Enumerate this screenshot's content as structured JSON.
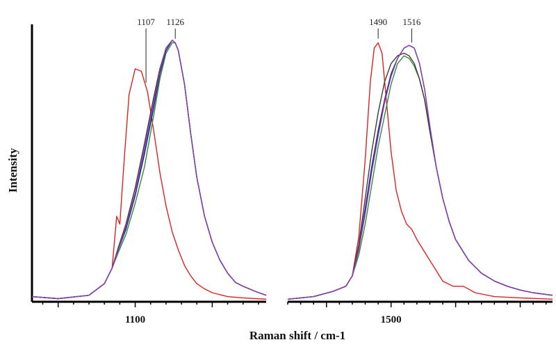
{
  "chart_data": [
    {
      "type": "line",
      "panel": "left",
      "xlabel": "Raman shift / cm-1",
      "ylabel": "Intensity",
      "xlim": [
        1033,
        1185
      ],
      "ylim": [
        0,
        1.05
      ],
      "x_ticks": [
        1100
      ],
      "peak_labels": [
        {
          "text": "1107",
          "x": 1107
        },
        {
          "text": "1126",
          "x": 1126
        }
      ],
      "grid": false,
      "series": [
        {
          "color": "#e02020",
          "x": [
            1033,
            1050,
            1070,
            1080,
            1085,
            1088,
            1090,
            1093,
            1096,
            1100,
            1104,
            1108,
            1112,
            1116,
            1120,
            1124,
            1128,
            1132,
            1136,
            1140,
            1145,
            1150,
            1160,
            1170,
            1185
          ],
          "values": [
            0.02,
            0.012,
            0.025,
            0.07,
            0.13,
            0.33,
            0.3,
            0.56,
            0.8,
            0.9,
            0.89,
            0.81,
            0.66,
            0.5,
            0.37,
            0.27,
            0.2,
            0.14,
            0.1,
            0.07,
            0.05,
            0.035,
            0.02,
            0.015,
            0.01
          ]
        },
        {
          "color": "#1a1a80",
          "x": [
            1033,
            1050,
            1070,
            1080,
            1085,
            1089,
            1094,
            1100,
            1106,
            1112,
            1116,
            1120,
            1124,
            1126,
            1128,
            1132,
            1136,
            1140,
            1145,
            1150,
            1155,
            1160,
            1165,
            1170,
            1178,
            1185
          ],
          "values": [
            0.02,
            0.012,
            0.025,
            0.07,
            0.13,
            0.2,
            0.28,
            0.41,
            0.57,
            0.75,
            0.88,
            0.97,
            1.01,
            1.0,
            0.97,
            0.84,
            0.65,
            0.48,
            0.33,
            0.23,
            0.16,
            0.11,
            0.075,
            0.06,
            0.04,
            0.025
          ]
        },
        {
          "color": "#2e8b3a",
          "x": [
            1033,
            1050,
            1070,
            1080,
            1085,
            1089,
            1094,
            1100,
            1106,
            1112,
            1116,
            1120,
            1124,
            1126,
            1128,
            1132,
            1136,
            1140,
            1145,
            1150,
            1155,
            1160,
            1165,
            1170,
            1178,
            1185
          ],
          "values": [
            0.02,
            0.012,
            0.025,
            0.07,
            0.13,
            0.19,
            0.26,
            0.38,
            0.52,
            0.72,
            0.86,
            0.96,
            1.0,
            1.0,
            0.97,
            0.84,
            0.65,
            0.48,
            0.33,
            0.23,
            0.16,
            0.11,
            0.075,
            0.06,
            0.04,
            0.025
          ]
        },
        {
          "color": "#3a3a3a",
          "x": [
            1033,
            1050,
            1070,
            1080,
            1085,
            1089,
            1094,
            1100,
            1106,
            1112,
            1116,
            1120,
            1124,
            1126,
            1128,
            1132,
            1136,
            1140,
            1145,
            1150,
            1155,
            1160,
            1165,
            1170,
            1178,
            1185
          ],
          "values": [
            0.02,
            0.012,
            0.025,
            0.07,
            0.13,
            0.21,
            0.3,
            0.44,
            0.61,
            0.79,
            0.9,
            0.98,
            1.01,
            1.0,
            0.97,
            0.84,
            0.65,
            0.48,
            0.33,
            0.23,
            0.16,
            0.11,
            0.075,
            0.06,
            0.04,
            0.025
          ]
        },
        {
          "color": "#8a3fb5",
          "x": [
            1033,
            1050,
            1070,
            1080,
            1085,
            1089,
            1094,
            1100,
            1106,
            1112,
            1116,
            1120,
            1124,
            1126,
            1128,
            1132,
            1136,
            1140,
            1145,
            1150,
            1155,
            1160,
            1165,
            1170,
            1178,
            1185
          ],
          "values": [
            0.02,
            0.012,
            0.025,
            0.07,
            0.13,
            0.2,
            0.29,
            0.42,
            0.59,
            0.77,
            0.89,
            0.98,
            1.01,
            1.0,
            0.97,
            0.84,
            0.65,
            0.48,
            0.33,
            0.23,
            0.16,
            0.11,
            0.075,
            0.06,
            0.04,
            0.025
          ]
        }
      ]
    },
    {
      "type": "line",
      "panel": "right",
      "xlabel": "Raman shift / cm-1",
      "ylabel": "Intensity",
      "xlim": [
        1420,
        1625
      ],
      "ylim": [
        0,
        1.05
      ],
      "x_ticks": [
        1500
      ],
      "peak_labels": [
        {
          "text": "1490",
          "x": 1490
        },
        {
          "text": "1516",
          "x": 1516
        }
      ],
      "grid": false,
      "series": [
        {
          "color": "#e02020",
          "x": [
            1420,
            1440,
            1455,
            1465,
            1470,
            1475,
            1480,
            1484,
            1487,
            1490,
            1493,
            1496,
            1500,
            1504,
            1508,
            1512,
            1516,
            1520,
            1525,
            1530,
            1535,
            1540,
            1548,
            1556,
            1565,
            1580,
            1600,
            1625
          ],
          "values": [
            0.01,
            0.02,
            0.04,
            0.06,
            0.1,
            0.25,
            0.55,
            0.85,
            0.98,
            1.0,
            0.96,
            0.8,
            0.58,
            0.43,
            0.35,
            0.3,
            0.28,
            0.24,
            0.2,
            0.16,
            0.12,
            0.08,
            0.06,
            0.06,
            0.035,
            0.02,
            0.015,
            0.01
          ]
        },
        {
          "color": "#1a1a80",
          "x": [
            1420,
            1440,
            1455,
            1465,
            1470,
            1475,
            1480,
            1485,
            1490,
            1495,
            1500,
            1505,
            1510,
            1514,
            1518,
            1522,
            1526,
            1530,
            1535,
            1540,
            1545,
            1550,
            1560,
            1570,
            1580,
            1590,
            1600,
            1610,
            1625
          ],
          "values": [
            0.01,
            0.02,
            0.04,
            0.06,
            0.1,
            0.2,
            0.36,
            0.52,
            0.66,
            0.78,
            0.88,
            0.94,
            0.98,
            0.99,
            0.98,
            0.92,
            0.82,
            0.68,
            0.52,
            0.4,
            0.31,
            0.24,
            0.16,
            0.11,
            0.08,
            0.06,
            0.045,
            0.035,
            0.025
          ]
        },
        {
          "color": "#2e8b3a",
          "x": [
            1420,
            1440,
            1455,
            1465,
            1470,
            1475,
            1480,
            1485,
            1490,
            1495,
            1500,
            1505,
            1510,
            1514,
            1518,
            1522,
            1526,
            1530,
            1535,
            1540,
            1545,
            1550,
            1560,
            1570,
            1580,
            1590,
            1600,
            1610,
            1625
          ],
          "values": [
            0.01,
            0.02,
            0.04,
            0.06,
            0.1,
            0.18,
            0.3,
            0.45,
            0.6,
            0.72,
            0.84,
            0.92,
            0.95,
            0.94,
            0.91,
            0.86,
            0.78,
            0.66,
            0.52,
            0.4,
            0.31,
            0.24,
            0.16,
            0.11,
            0.08,
            0.06,
            0.045,
            0.035,
            0.025
          ]
        },
        {
          "color": "#3a3a3a",
          "x": [
            1420,
            1440,
            1455,
            1465,
            1470,
            1475,
            1480,
            1485,
            1490,
            1495,
            1500,
            1505,
            1510,
            1514,
            1518,
            1522,
            1526,
            1530,
            1535,
            1540,
            1545,
            1550,
            1560,
            1570,
            1580,
            1590,
            1600,
            1610,
            1625
          ],
          "values": [
            0.01,
            0.02,
            0.04,
            0.06,
            0.1,
            0.22,
            0.4,
            0.58,
            0.73,
            0.85,
            0.92,
            0.95,
            0.96,
            0.95,
            0.92,
            0.86,
            0.78,
            0.66,
            0.52,
            0.4,
            0.31,
            0.24,
            0.16,
            0.11,
            0.08,
            0.06,
            0.045,
            0.035,
            0.025
          ]
        },
        {
          "color": "#8a3fb5",
          "x": [
            1420,
            1440,
            1455,
            1465,
            1470,
            1475,
            1480,
            1485,
            1490,
            1495,
            1500,
            1505,
            1510,
            1514,
            1518,
            1522,
            1526,
            1530,
            1535,
            1540,
            1545,
            1550,
            1560,
            1570,
            1580,
            1590,
            1600,
            1610,
            1625
          ],
          "values": [
            0.01,
            0.02,
            0.04,
            0.06,
            0.1,
            0.2,
            0.34,
            0.5,
            0.64,
            0.77,
            0.87,
            0.94,
            0.98,
            0.99,
            0.98,
            0.92,
            0.82,
            0.68,
            0.52,
            0.4,
            0.31,
            0.24,
            0.16,
            0.11,
            0.08,
            0.06,
            0.045,
            0.035,
            0.025
          ]
        }
      ]
    }
  ],
  "labels": {
    "ylabel": "Intensity",
    "xlabel": "Raman shift / cm-1"
  }
}
